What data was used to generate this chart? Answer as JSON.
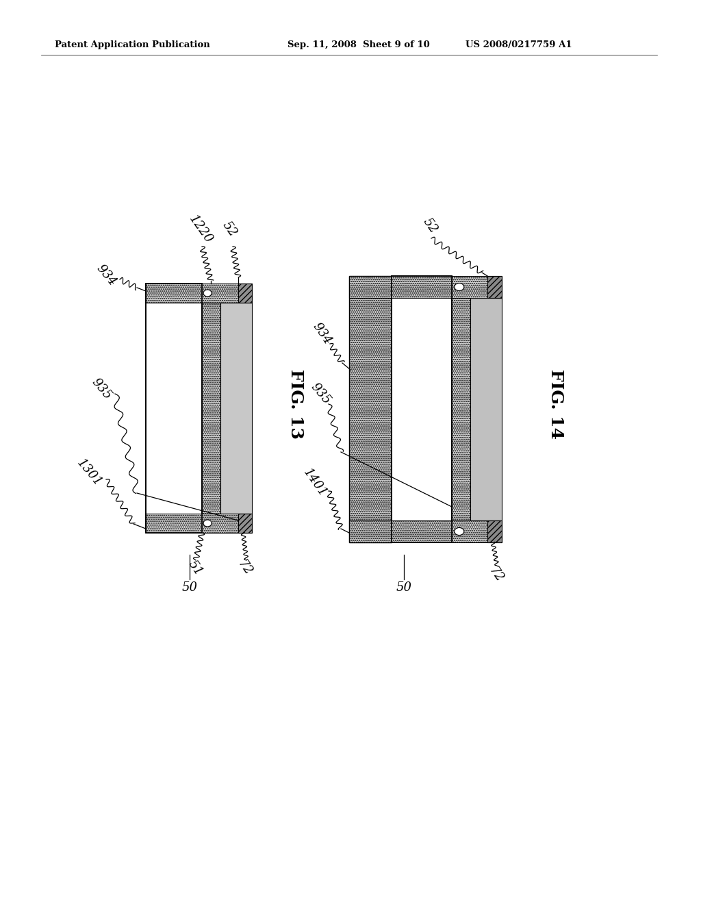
{
  "bg_color": "#ffffff",
  "header_text1": "Patent Application Publication",
  "header_text2": "Sep. 11, 2008  Sheet 9 of 10",
  "header_text3": "US 2008/0217759 A1",
  "fig13_label": "FIG. 13",
  "fig14_label": "FIG. 14"
}
